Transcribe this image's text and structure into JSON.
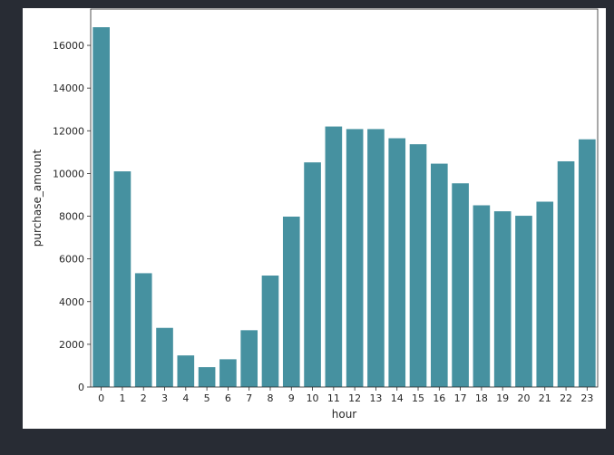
{
  "chart_data": {
    "type": "bar",
    "title": "",
    "xlabel": "hour",
    "ylabel": "purchase_amount",
    "categories": [
      "0",
      "1",
      "2",
      "3",
      "4",
      "5",
      "6",
      "7",
      "8",
      "9",
      "10",
      "11",
      "12",
      "13",
      "14",
      "15",
      "16",
      "17",
      "18",
      "19",
      "20",
      "21",
      "22",
      "23"
    ],
    "values": [
      16850,
      10100,
      5330,
      2770,
      1480,
      930,
      1300,
      2660,
      5220,
      7980,
      10520,
      12200,
      12080,
      12080,
      11650,
      11370,
      10460,
      9540,
      8510,
      8230,
      8020,
      8680,
      10570,
      11600
    ],
    "ylim": [
      0,
      17700
    ],
    "yticks": [
      0,
      2000,
      4000,
      6000,
      8000,
      10000,
      12000,
      14000,
      16000
    ],
    "grid": false,
    "legend": "none",
    "colors": {
      "bar": "#4691a0",
      "axes": "#262626",
      "background": "#282c34",
      "figure": "#ffffff"
    }
  }
}
